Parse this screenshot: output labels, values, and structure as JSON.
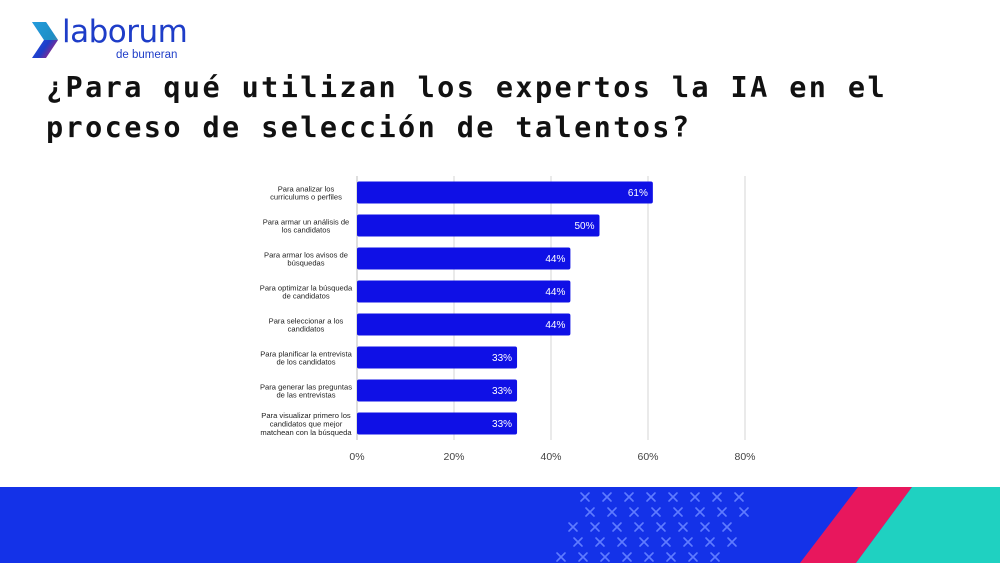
{
  "brand": {
    "name": "laborum",
    "tagline": "de bumeran"
  },
  "page_title": "¿Para qué utilizan los expertos la IA en el proceso de selección de talentos?",
  "colors": {
    "brand_blue": "#1e3dc8",
    "bar": "#0f10e6",
    "band_blue": "#1432e8",
    "accent_pink": "#e8175d",
    "accent_teal": "#1fd1c1"
  },
  "chart_data": {
    "type": "bar",
    "orientation": "horizontal",
    "title": "",
    "xlabel": "",
    "ylabel": "",
    "xlim": [
      0,
      80
    ],
    "grid": true,
    "categories": [
      [
        "Para analizar los",
        "curriculums o perfiles"
      ],
      [
        "Para armar un análisis de",
        "los candidatos"
      ],
      [
        "Para armar los avisos de",
        "búsquedas"
      ],
      [
        "Para optimizar la búsqueda",
        "de candidatos"
      ],
      [
        "Para seleccionar a los",
        "candidatos"
      ],
      [
        "Para planificar la entrevista",
        "de los candidatos"
      ],
      [
        "Para generar las preguntas",
        "de las entrevistas"
      ],
      [
        "Para visualizar primero los",
        "candidatos que mejor",
        "matchean con la búsqueda"
      ]
    ],
    "values": [
      61,
      50,
      44,
      44,
      44,
      33,
      33,
      33
    ],
    "value_labels": [
      "61%",
      "50%",
      "44%",
      "44%",
      "44%",
      "33%",
      "33%",
      "33%"
    ],
    "x_ticks": [
      0,
      20,
      40,
      60,
      80
    ],
    "x_tick_labels": [
      "0%",
      "20%",
      "40%",
      "60%",
      "80%"
    ]
  }
}
